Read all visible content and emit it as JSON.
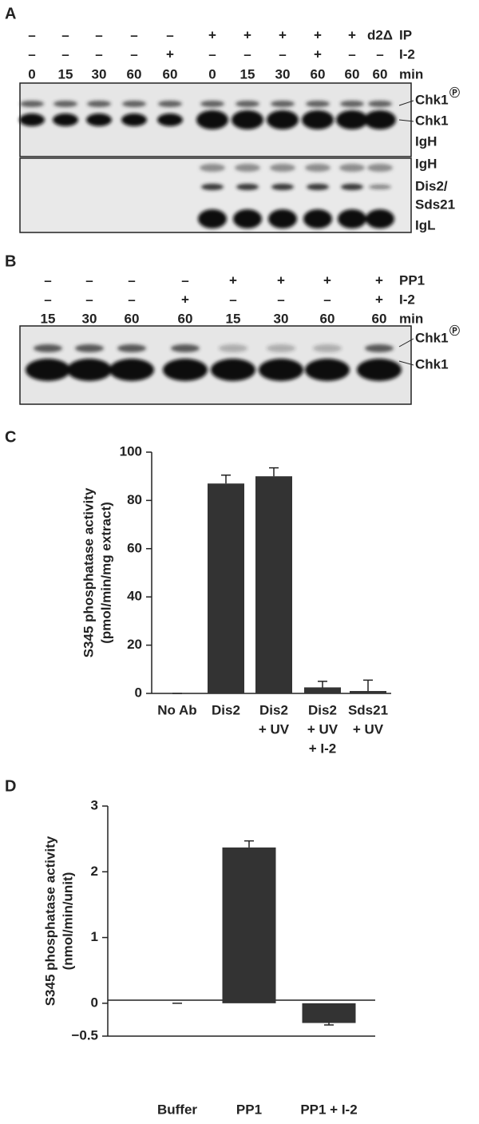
{
  "panel_a": {
    "letter": "A",
    "rows": [
      {
        "label": "IP",
        "cells": [
          "–",
          "–",
          "–",
          "–",
          "–",
          "+",
          "+",
          "+",
          "+",
          "+",
          "d2Δ"
        ]
      },
      {
        "label": "I-2",
        "cells": [
          "–",
          "–",
          "–",
          "–",
          "+",
          "–",
          "–",
          "–",
          "+",
          "–",
          "–"
        ]
      },
      {
        "label": "min",
        "cells": [
          "0",
          "15",
          "30",
          "60",
          "60",
          "0",
          "15",
          "30",
          "60",
          "60",
          "60"
        ]
      }
    ],
    "upper_gel_labels": [
      "Chk1",
      "Chk1",
      "IgH"
    ],
    "phospho_mark": "Ⓟ",
    "lower_gel_labels": [
      "IgH",
      "Dis2/",
      "Sds21",
      "IgL"
    ]
  },
  "panel_b": {
    "letter": "B",
    "rows": [
      {
        "label": "PP1",
        "cells": [
          "–",
          "–",
          "–",
          "–",
          "+",
          "+",
          "+",
          "+"
        ]
      },
      {
        "label": "I-2",
        "cells": [
          "–",
          "–",
          "–",
          "+",
          "–",
          "–",
          "–",
          "+"
        ]
      },
      {
        "label": "min",
        "cells": [
          "15",
          "30",
          "60",
          "60",
          "15",
          "30",
          "60",
          "60"
        ]
      }
    ],
    "gel_labels": [
      "Chk1",
      "Chk1"
    ],
    "phospho_mark": "Ⓟ"
  },
  "chart_data": [
    {
      "type": "bar",
      "panel": "C",
      "ylabel": [
        "S345 phosphatase activity",
        "(pmol/min/mg extract)"
      ],
      "categories": [
        [
          "No Ab"
        ],
        [
          "Dis2"
        ],
        [
          "Dis2",
          "+ UV"
        ],
        [
          "Dis2",
          "+ UV",
          "+ I-2"
        ],
        [
          "Sds21",
          "+ UV"
        ]
      ],
      "values": [
        0,
        87,
        90,
        2.5,
        1
      ],
      "errors": [
        0,
        3.5,
        3.5,
        2.5,
        4.5
      ],
      "color": "#333333",
      "ylim": [
        0,
        100
      ],
      "yticks": [
        0,
        20,
        40,
        60,
        80,
        100
      ]
    },
    {
      "type": "bar",
      "panel": "D",
      "ylabel": [
        "S345 phosphatase activity",
        "(nmol/min/unit)"
      ],
      "categories": [
        [
          "Buffer"
        ],
        [
          "PP1"
        ],
        [
          "PP1 + I-2"
        ]
      ],
      "values": [
        0,
        2.37,
        -0.3
      ],
      "errors": [
        0,
        0.1,
        0.03
      ],
      "color": "#333333",
      "ylim": [
        -0.5,
        3
      ],
      "yticks": [
        {
          "value": -0.5,
          "label": "−0.5"
        },
        0,
        1,
        2,
        3
      ]
    }
  ]
}
